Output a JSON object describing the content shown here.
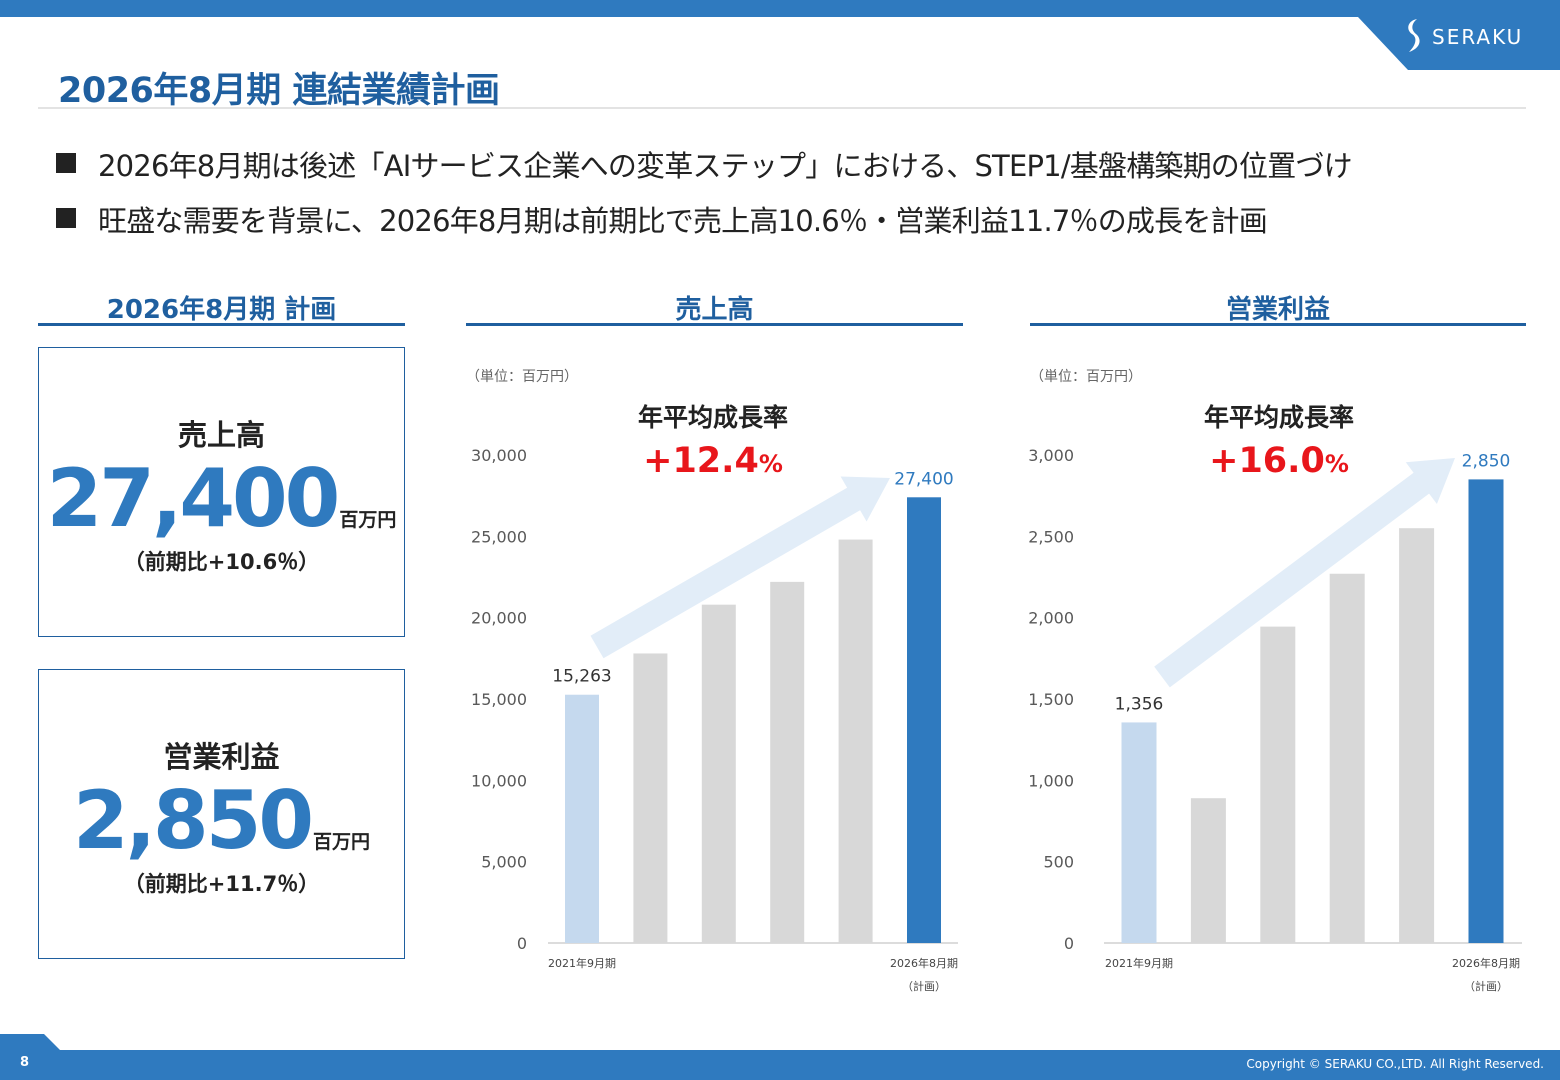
{
  "header": {
    "logo_text": "SERAKU",
    "title": "2026年8月期 連結業績計画"
  },
  "bullets": [
    "2026年8月期は後述「AIサービス企業への変革ステップ」における、STEP1/基盤構築期の位置づけ",
    "旺盛な需要を背景に、2026年8月期は前期比で売上高10.6％・営業利益11.7％の成長を計画"
  ],
  "sections": {
    "plan": "2026年8月期 計画",
    "sales": "売上高",
    "profit": "営業利益"
  },
  "kpis": [
    {
      "label": "売上高",
      "value": "27,400",
      "unit": "百万円",
      "growth": "（前期比+10.6％）"
    },
    {
      "label": "営業利益",
      "value": "2,850",
      "unit": "百万円",
      "growth": "（前期比+11.7％）"
    }
  ],
  "chart_data": [
    {
      "type": "bar",
      "title": "売上高",
      "unit_note": "（単位：百万円）",
      "cagr_label": "年平均成長率",
      "cagr_value": "+12.4",
      "cagr_suffix": "%",
      "categories": [
        "2021年9月期",
        "",
        "",
        "",
        "",
        "2026年8月期"
      ],
      "category_sub": [
        "",
        "",
        "",
        "",
        "",
        "（計画）"
      ],
      "values": [
        15263,
        17800,
        20800,
        22200,
        24800,
        27400
      ],
      "value_labels": [
        "15,263",
        "",
        "",
        "",
        "",
        "27,400"
      ],
      "bar_colors": [
        "#c5d9ee",
        "#d8d8d8",
        "#d8d8d8",
        "#d8d8d8",
        "#d8d8d8",
        "#2f7abf"
      ],
      "yticks": [
        0,
        5000,
        10000,
        15000,
        20000,
        25000,
        30000
      ],
      "ytick_labels": [
        "0",
        "5,000",
        "10,000",
        "15,000",
        "20,000",
        "25,000",
        "30,000"
      ],
      "ylim": [
        0,
        30000
      ]
    },
    {
      "type": "bar",
      "title": "営業利益",
      "unit_note": "（単位：百万円）",
      "cagr_label": "年平均成長率",
      "cagr_value": "+16.0",
      "cagr_suffix": "%",
      "categories": [
        "2021年9月期",
        "",
        "",
        "",
        "",
        "2026年8月期"
      ],
      "category_sub": [
        "",
        "",
        "",
        "",
        "",
        "（計画）"
      ],
      "values": [
        1356,
        890,
        1945,
        2270,
        2550,
        2850
      ],
      "value_labels": [
        "1,356",
        "",
        "",
        "",
        "",
        "2,850"
      ],
      "bar_colors": [
        "#c5d9ee",
        "#d8d8d8",
        "#d8d8d8",
        "#d8d8d8",
        "#d8d8d8",
        "#2f7abf"
      ],
      "yticks": [
        0,
        500,
        1000,
        1500,
        2000,
        2500,
        3000
      ],
      "ytick_labels": [
        "0",
        "500",
        "1,000",
        "1,500",
        "2,000",
        "2,500",
        "3,000"
      ],
      "ylim": [
        0,
        3000
      ]
    }
  ],
  "colors": {
    "brand": "#2f7abf",
    "heading": "#1f5f9f",
    "growth_red": "#e8161b",
    "arrow": "#e2edf8"
  },
  "footer": {
    "page_number": "8",
    "copyright": "Copyright © SERAKU CO.,LTD. All Right Reserved."
  }
}
